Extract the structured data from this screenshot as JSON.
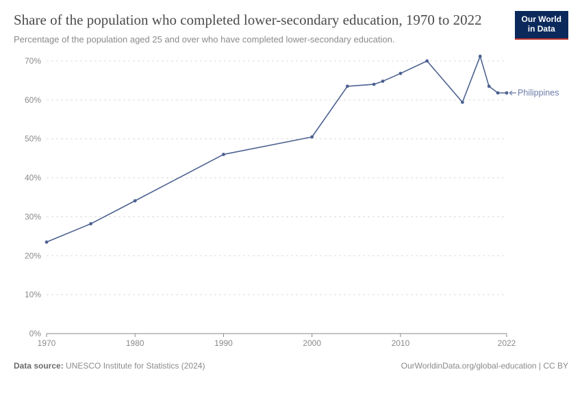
{
  "header": {
    "title": "Share of the population who completed lower-secondary education, 1970 to 2022",
    "subtitle": "Percentage of the population aged 25 and over who have completed lower-secondary education.",
    "logo_line1": "Our World",
    "logo_line2": "in Data"
  },
  "chart": {
    "type": "line",
    "background_color": "#ffffff",
    "grid_color": "#dcdcdc",
    "axis_color": "#8a8a8a",
    "axis_font_size": 12,
    "xlim": [
      1970,
      2022
    ],
    "ylim": [
      0,
      70
    ],
    "x_ticks": [
      1970,
      1980,
      1990,
      2000,
      2010,
      2022
    ],
    "y_ticks": [
      0,
      10,
      20,
      30,
      40,
      50,
      60,
      70
    ],
    "y_tick_suffix": "%",
    "series": {
      "name": "Philippines",
      "label_color": "#6b7ca8",
      "line_color": "#4c6190",
      "line_width": 1.6,
      "marker_radius": 2.4,
      "marker_color": "#4c6190",
      "points": [
        [
          1970,
          23.5
        ],
        [
          1975,
          28.2
        ],
        [
          1980,
          34.1
        ],
        [
          1990,
          46.0
        ],
        [
          2000,
          50.5
        ],
        [
          2004,
          63.5
        ],
        [
          2007,
          64.0
        ],
        [
          2008,
          64.8
        ],
        [
          2010,
          66.8
        ],
        [
          2013,
          70.0
        ],
        [
          2017,
          59.4
        ],
        [
          2019,
          71.2
        ],
        [
          2020,
          63.5
        ],
        [
          2021,
          61.8
        ],
        [
          2022,
          61.8
        ]
      ]
    }
  },
  "footer": {
    "source_label": "Data source:",
    "source_text": "UNESCO Institute for Statistics (2024)",
    "attribution": "OurWorldinData.org/global-education | CC BY"
  }
}
